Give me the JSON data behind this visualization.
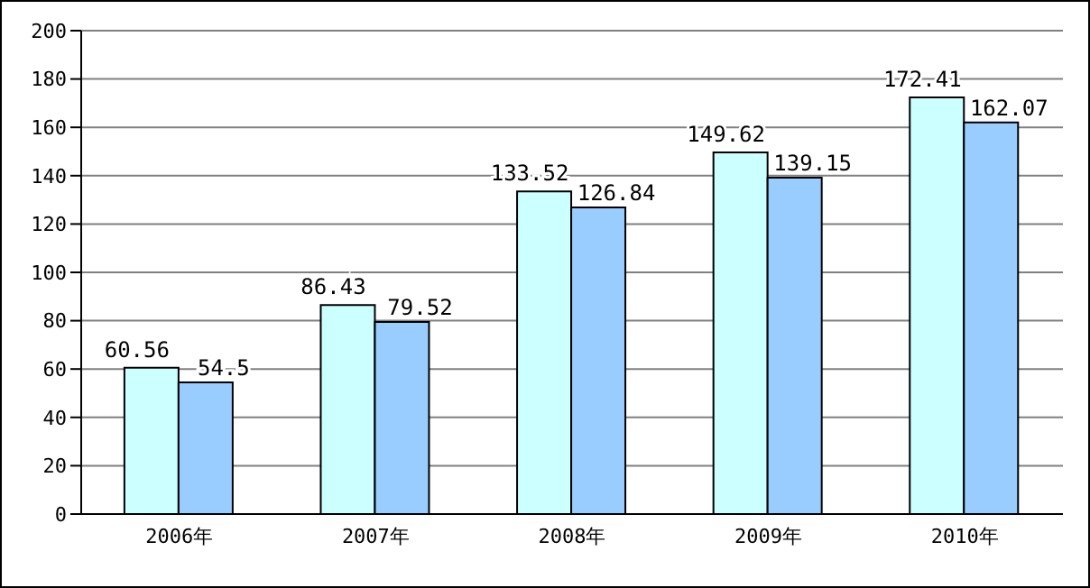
{
  "chart_data": {
    "type": "bar",
    "categories": [
      "2006年",
      "2007年",
      "2008年",
      "2009年",
      "2010年"
    ],
    "series": [
      {
        "color": "#ccffff",
        "values": [
          60.56,
          86.43,
          133.52,
          149.62,
          172.41
        ]
      },
      {
        "color": "#99ccff",
        "values": [
          54.5,
          79.52,
          126.84,
          139.15,
          162.07
        ]
      }
    ],
    "ylim": [
      0,
      200
    ],
    "yticks": [
      0,
      20,
      40,
      60,
      80,
      100,
      120,
      140,
      160,
      180,
      200
    ],
    "grid": "y",
    "data_labels": true
  }
}
